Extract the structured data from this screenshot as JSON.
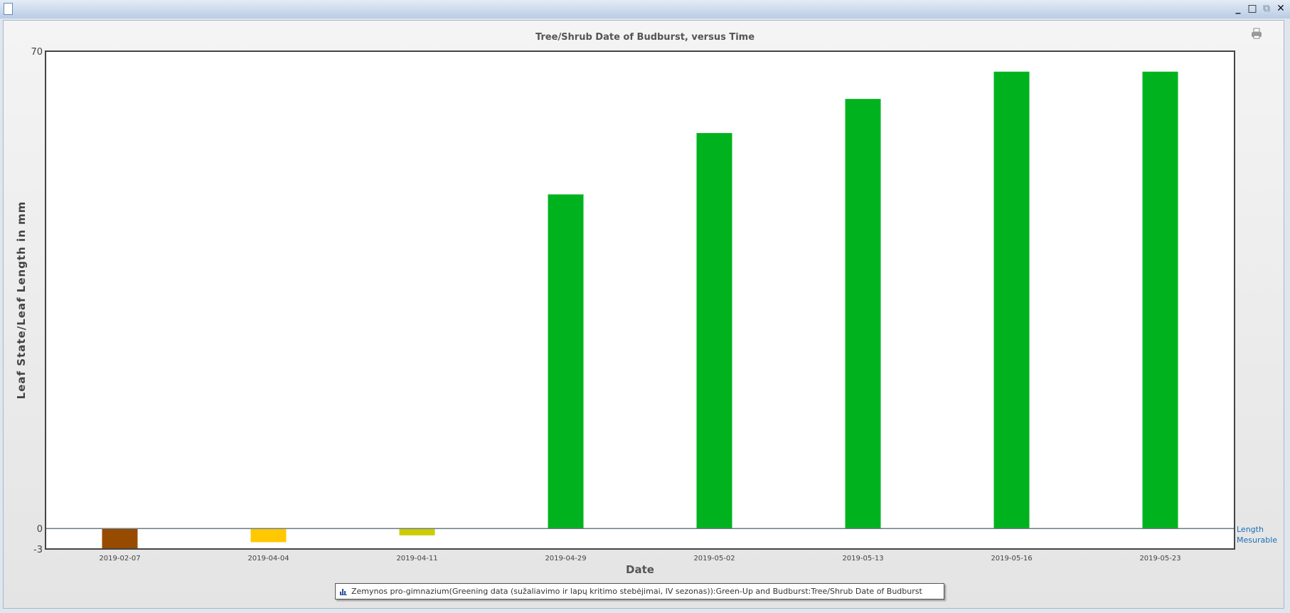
{
  "window": {
    "buttons": [
      "minimize",
      "maximize",
      "restore",
      "close"
    ]
  },
  "chart_data": {
    "type": "bar",
    "title": "Tree/Shrub Date of Budburst, versus Time",
    "xlabel": "Date",
    "ylabel": "Leaf State/Leaf Length in mm",
    "ylim": [
      -3,
      70
    ],
    "y_ticks": [
      "70",
      "0",
      "-3"
    ],
    "y_tick_values": [
      70,
      0,
      -3
    ],
    "categories": [
      "2019-02-07",
      "2019-04-04",
      "2019-04-11",
      "2019-04-29",
      "2019-05-02",
      "2019-05-13",
      "2019-05-16",
      "2019-05-23"
    ],
    "values": [
      -3,
      -2,
      -1,
      49,
      58,
      63,
      67,
      67
    ],
    "colors": [
      "#964B00",
      "#FFC800",
      "#CCCC00",
      "#00B31E",
      "#00B31E",
      "#00B31E",
      "#00B31E",
      "#00B31E"
    ],
    "grid": false,
    "right_labels": [
      "Length",
      "Mesurable"
    ],
    "legend": {
      "position": "bottom",
      "text": "Zemynos pro-gimnazium(Greening data (sužaliavimo ir lapų kritimo stebėjimai, IV sezonas)):Green-Up and Budburst:Tree/Shrub Date of Budburst"
    }
  }
}
